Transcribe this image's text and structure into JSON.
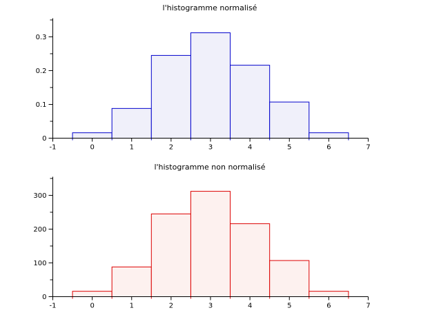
{
  "figure": {
    "background_color": "#ffffff",
    "axis_color": "#000000",
    "text_color": "#000000"
  },
  "chart_data": [
    {
      "type": "bar",
      "subtype": "histogram",
      "title": "l'histogramme normalisé",
      "xlabel": "",
      "ylabel": "",
      "bin_start": -0.5,
      "bin_width": 1,
      "bin_centers": [
        0,
        1,
        2,
        3,
        4,
        5,
        6
      ],
      "values": [
        0.016,
        0.088,
        0.245,
        0.312,
        0.216,
        0.107,
        0.016
      ],
      "x_range": [
        -1,
        7
      ],
      "y_range": [
        0,
        0.355
      ],
      "x_ticks": [
        -1,
        0,
        1,
        2,
        3,
        4,
        5,
        6,
        7
      ],
      "x_tick_labels": [
        "-1",
        "0",
        "1",
        "2",
        "3",
        "4",
        "5",
        "6",
        "7"
      ],
      "x_minor_step": 0.5,
      "y_ticks": [
        0,
        0.1,
        0.2,
        0.3
      ],
      "y_tick_labels": [
        "0",
        "0.1",
        "0.2",
        "0.3"
      ],
      "y_minor_step": 0.05,
      "grid": "off",
      "legend": "none",
      "line_color": "#0000cc",
      "fill_color": "#f0f0fa"
    },
    {
      "type": "bar",
      "subtype": "histogram",
      "title": "l'histogramme non normalisé",
      "xlabel": "",
      "ylabel": "",
      "bin_start": -0.5,
      "bin_width": 1,
      "bin_centers": [
        0,
        1,
        2,
        3,
        4,
        5,
        6
      ],
      "values": [
        16,
        88,
        245,
        312,
        216,
        107,
        16
      ],
      "x_range": [
        -1,
        7
      ],
      "y_range": [
        0,
        355
      ],
      "x_ticks": [
        -1,
        0,
        1,
        2,
        3,
        4,
        5,
        6,
        7
      ],
      "x_tick_labels": [
        "-1",
        "0",
        "1",
        "2",
        "3",
        "4",
        "5",
        "6",
        "7"
      ],
      "x_minor_step": 0.5,
      "y_ticks": [
        0,
        100,
        200,
        300
      ],
      "y_tick_labels": [
        "0",
        "100",
        "200",
        "300"
      ],
      "y_minor_step": 50,
      "grid": "off",
      "legend": "none",
      "line_color": "#dd0000",
      "fill_color": "#fdf1ef"
    }
  ]
}
